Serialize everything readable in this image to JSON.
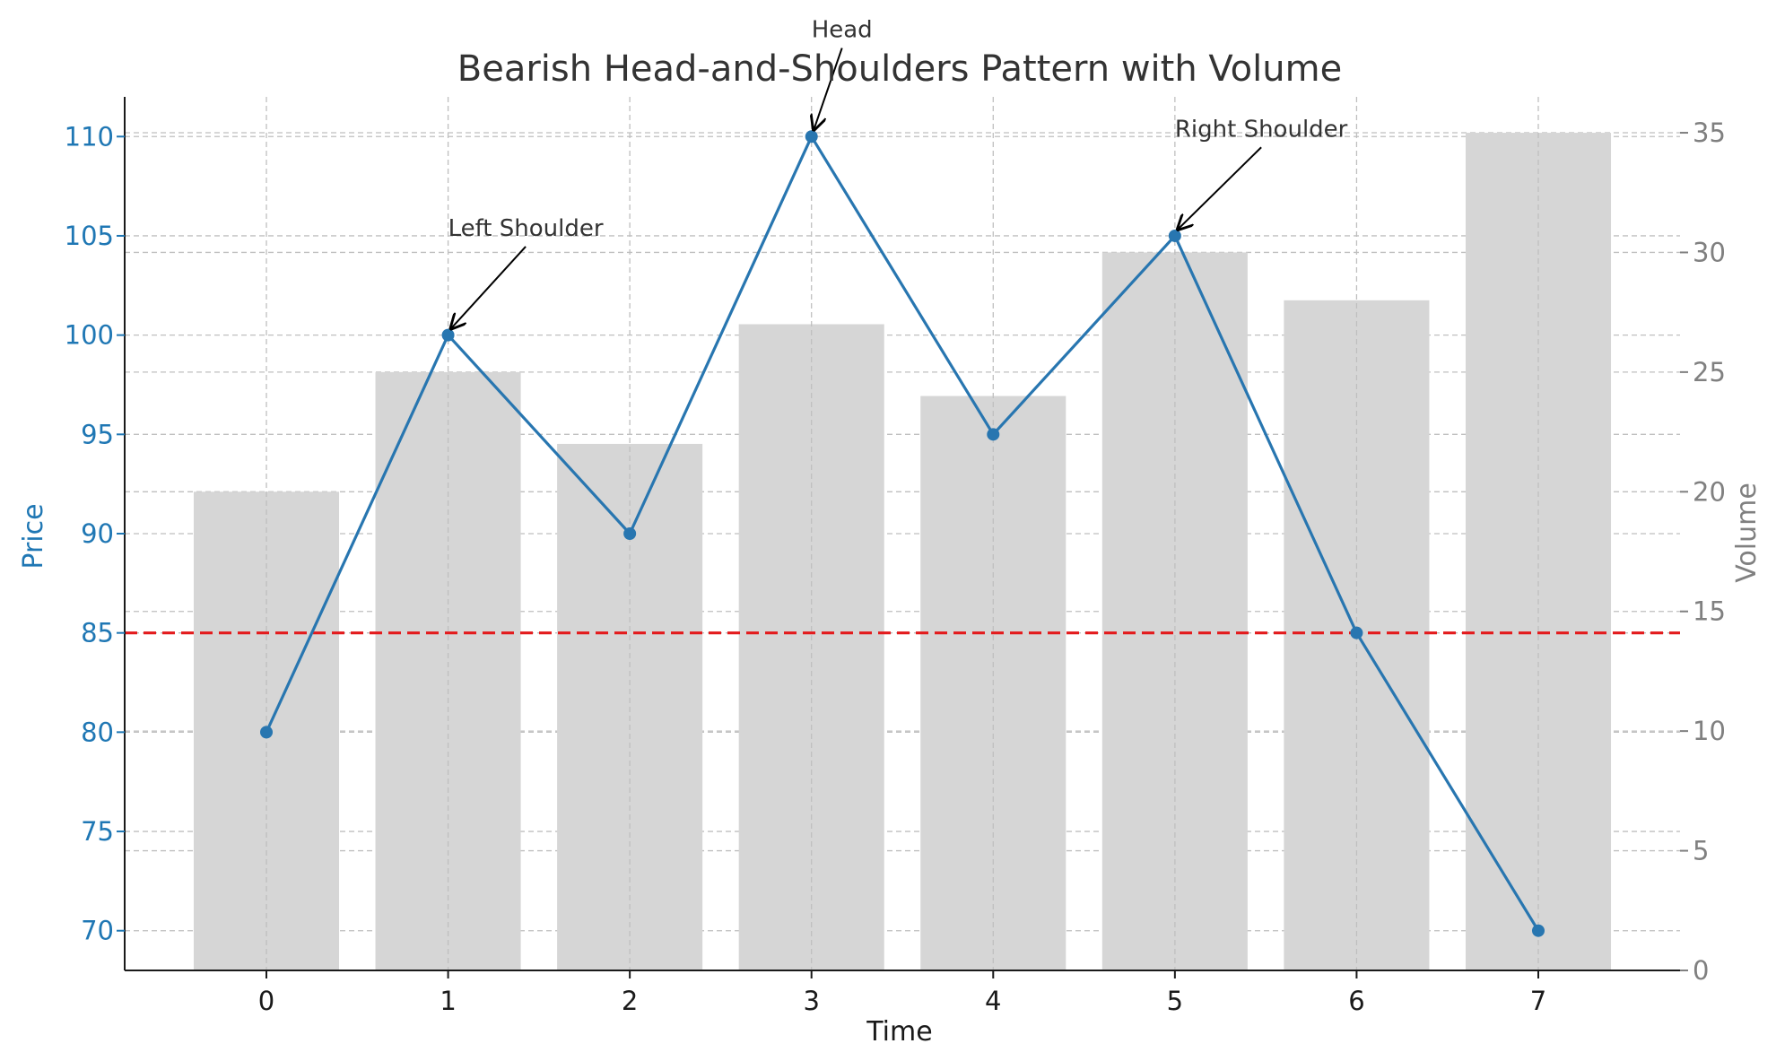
{
  "chart_data": {
    "type": "line",
    "title": "Bearish Head-and-Shoulders Pattern with Volume",
    "xlabel": "Time",
    "ylabel": "Price",
    "y2label": "Volume",
    "x": [
      0,
      1,
      2,
      3,
      4,
      5,
      6,
      7
    ],
    "xticks": [
      "0",
      "1",
      "2",
      "3",
      "4",
      "5",
      "6",
      "7"
    ],
    "xlim": [
      -0.78,
      7.78
    ],
    "ylim": [
      68,
      112
    ],
    "y2lim": [
      0,
      36.5
    ],
    "yticks": [
      70,
      75,
      80,
      85,
      90,
      95,
      100,
      105,
      110
    ],
    "y2ticks": [
      0,
      5,
      10,
      15,
      20,
      25,
      30,
      35
    ],
    "grid": true,
    "series": [
      {
        "kind": "bar",
        "axis": "right",
        "values": [
          20,
          25,
          22,
          27,
          24,
          30,
          28,
          35
        ],
        "color": "#d6d6d6"
      },
      {
        "kind": "line",
        "axis": "left",
        "values": [
          80,
          100,
          90,
          110,
          95,
          105,
          85,
          70
        ],
        "color": "#2876b0"
      }
    ],
    "reference_line": {
      "axis": "left",
      "value": 85,
      "style": "dashed",
      "color": "#e31a1c"
    },
    "annotations": [
      {
        "text": "Left Shoulder",
        "x": 1,
        "y": 100,
        "text_x": 1,
        "text_y": 105
      },
      {
        "text": "Head",
        "x": 3,
        "y": 110,
        "text_x": 3,
        "text_y": 115
      },
      {
        "text": "Right Shoulder",
        "x": 5,
        "y": 105,
        "text_x": 5,
        "text_y": 110
      }
    ],
    "colors": {
      "price_axis": "#1f77b4",
      "volume_axis": "#808080",
      "grid": "#bfbfbf",
      "title": "#333333"
    }
  }
}
